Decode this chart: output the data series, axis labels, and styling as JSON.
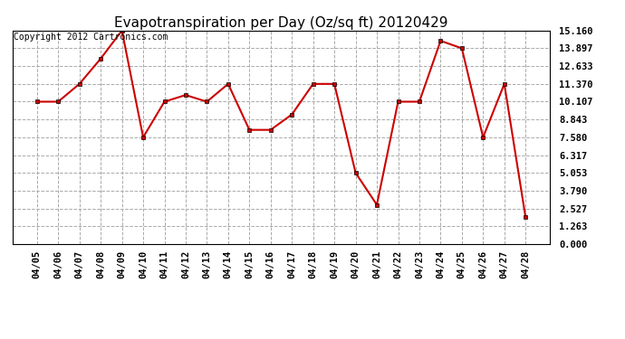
{
  "title": "Evapotranspiration per Day (Oz/sq ft) 20120429",
  "copyright_text": "Copyright 2012 Cartronics.com",
  "dates": [
    "04/05",
    "04/06",
    "04/07",
    "04/08",
    "04/09",
    "04/10",
    "04/11",
    "04/12",
    "04/13",
    "04/14",
    "04/15",
    "04/16",
    "04/17",
    "04/18",
    "04/19",
    "04/20",
    "04/21",
    "04/22",
    "04/23",
    "04/24",
    "04/25",
    "04/26",
    "04/27",
    "04/28"
  ],
  "values": [
    10.107,
    10.107,
    11.37,
    13.16,
    15.16,
    7.58,
    10.107,
    10.58,
    10.107,
    11.37,
    8.107,
    8.107,
    9.2,
    11.37,
    11.37,
    5.053,
    2.79,
    10.107,
    10.107,
    14.43,
    13.897,
    7.58,
    11.37,
    1.9
  ],
  "line_color": "#cc0000",
  "marker": "s",
  "marker_size": 3,
  "background_color": "#ffffff",
  "grid_color": "#aaaaaa",
  "ylim": [
    0.0,
    15.16
  ],
  "yticks": [
    0.0,
    1.263,
    2.527,
    3.79,
    5.053,
    6.317,
    7.58,
    8.843,
    10.107,
    11.37,
    12.633,
    13.897,
    15.16
  ],
  "title_fontsize": 11,
  "tick_fontsize": 7.5,
  "copyright_fontsize": 7,
  "figwidth": 6.9,
  "figheight": 3.75
}
